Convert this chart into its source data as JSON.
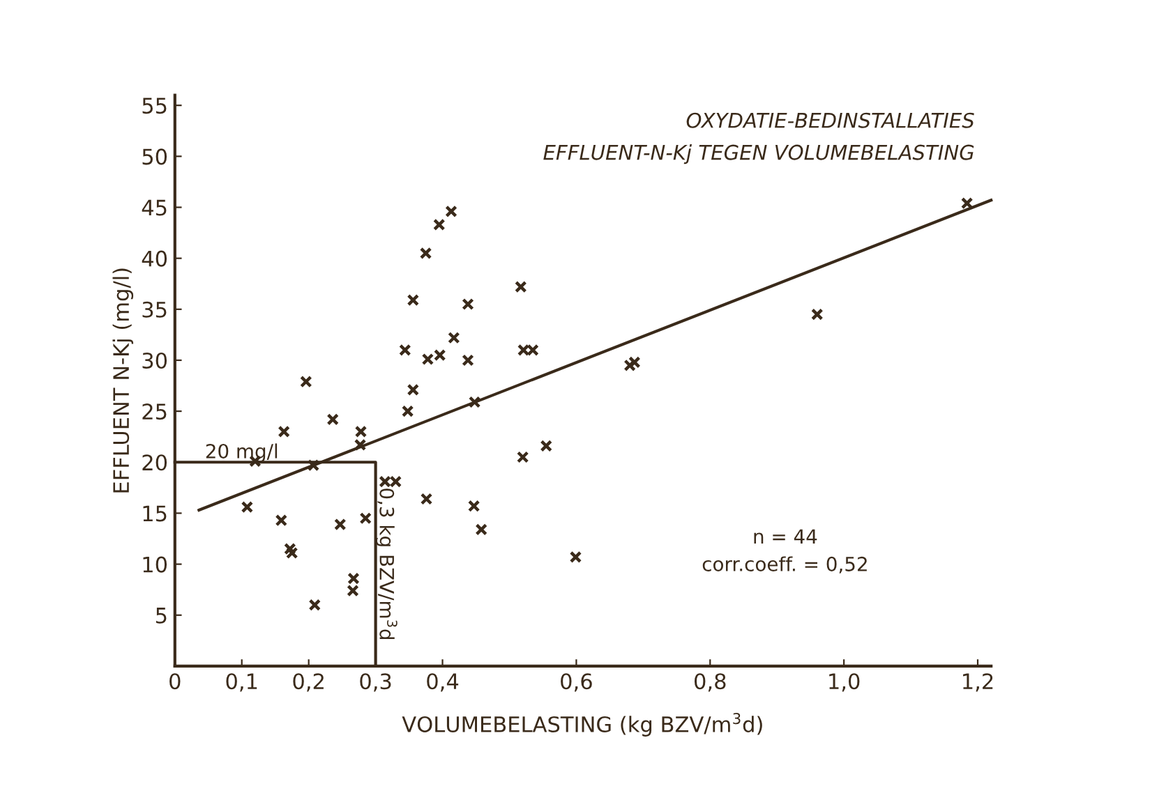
{
  "chart_data": {
    "type": "scatter",
    "title": "OXYDATIE-BEDINSTALLATIES\nEFFLUENT-N-Kj TEGEN VOLUMEBELASTING",
    "xlabel": "VOLUMEBELASTING (kg BZV/m$^{3}$d)",
    "ylabel": "EFFLUENT N-Kj (mg/l)",
    "xlim": [
      0,
      1.22
    ],
    "ylim": [
      0,
      56
    ],
    "xticks": [
      0,
      {
        "value": 0.1,
        "label": "0,1"
      },
      {
        "value": 0.2,
        "label": "0,2"
      },
      {
        "value": 0.3,
        "label": "0,3"
      },
      {
        "value": 0.4,
        "label": "0,4"
      },
      {
        "value": 0.6,
        "label": "0,6"
      },
      {
        "value": 0.8,
        "label": "0,8"
      },
      {
        "value": 1.0,
        "label": "1,0"
      },
      {
        "value": 1.2,
        "label": "1,2"
      }
    ],
    "yticks": [
      5,
      10,
      15,
      20,
      25,
      30,
      35,
      40,
      45,
      50,
      55
    ],
    "grid": false,
    "marker": "cross",
    "series": [
      {
        "color": "#3a2a1a",
        "x": [
          0.12,
          0.108,
          0.163,
          0.159,
          0.175,
          0.172,
          0.196,
          0.207,
          0.209,
          0.236,
          0.247,
          0.266,
          0.267,
          0.278,
          0.277,
          0.285,
          0.314,
          0.33,
          0.344,
          0.348,
          0.356,
          0.356,
          0.375,
          0.376,
          0.378,
          0.396,
          0.395,
          0.413,
          0.417,
          0.438,
          0.438,
          0.447,
          0.448,
          0.458,
          0.517,
          0.521,
          0.535,
          0.52,
          0.555,
          0.599,
          0.687,
          0.68,
          0.96,
          1.184
        ],
        "values": [
          20.1,
          15.6,
          23.0,
          14.3,
          11.1,
          11.5,
          27.9,
          19.7,
          6.0,
          24.2,
          13.9,
          7.4,
          8.6,
          23.0,
          21.7,
          14.5,
          18.1,
          18.1,
          31.0,
          25.0,
          35.9,
          27.1,
          40.5,
          16.4,
          30.1,
          30.5,
          43.3,
          44.6,
          32.2,
          35.5,
          30.0,
          15.7,
          25.9,
          13.4,
          37.2,
          31.0,
          31.0,
          20.5,
          21.6,
          10.7,
          29.8,
          29.5,
          34.5,
          45.4
        ]
      },
      {
        "type": "line",
        "marker": "none",
        "color": "#3a2a1a",
        "x": [
          0.036,
          1.22
        ],
        "values": [
          15.3,
          45.7
        ]
      },
      {
        "type": "line",
        "marker": "none",
        "color": "#3a2a1a",
        "x": [
          0,
          0.3,
          0.3
        ],
        "values": [
          20,
          20,
          0
        ]
      }
    ],
    "annotations": [
      {
        "text": "20 mg/l",
        "x": 0.1,
        "y": 20
      },
      {
        "text": "0,3 kg BZV/m$^{3}$d",
        "x": 0.3,
        "y": 10
      },
      "n = 44\ncorr.coeff. = 0,52"
    ]
  }
}
